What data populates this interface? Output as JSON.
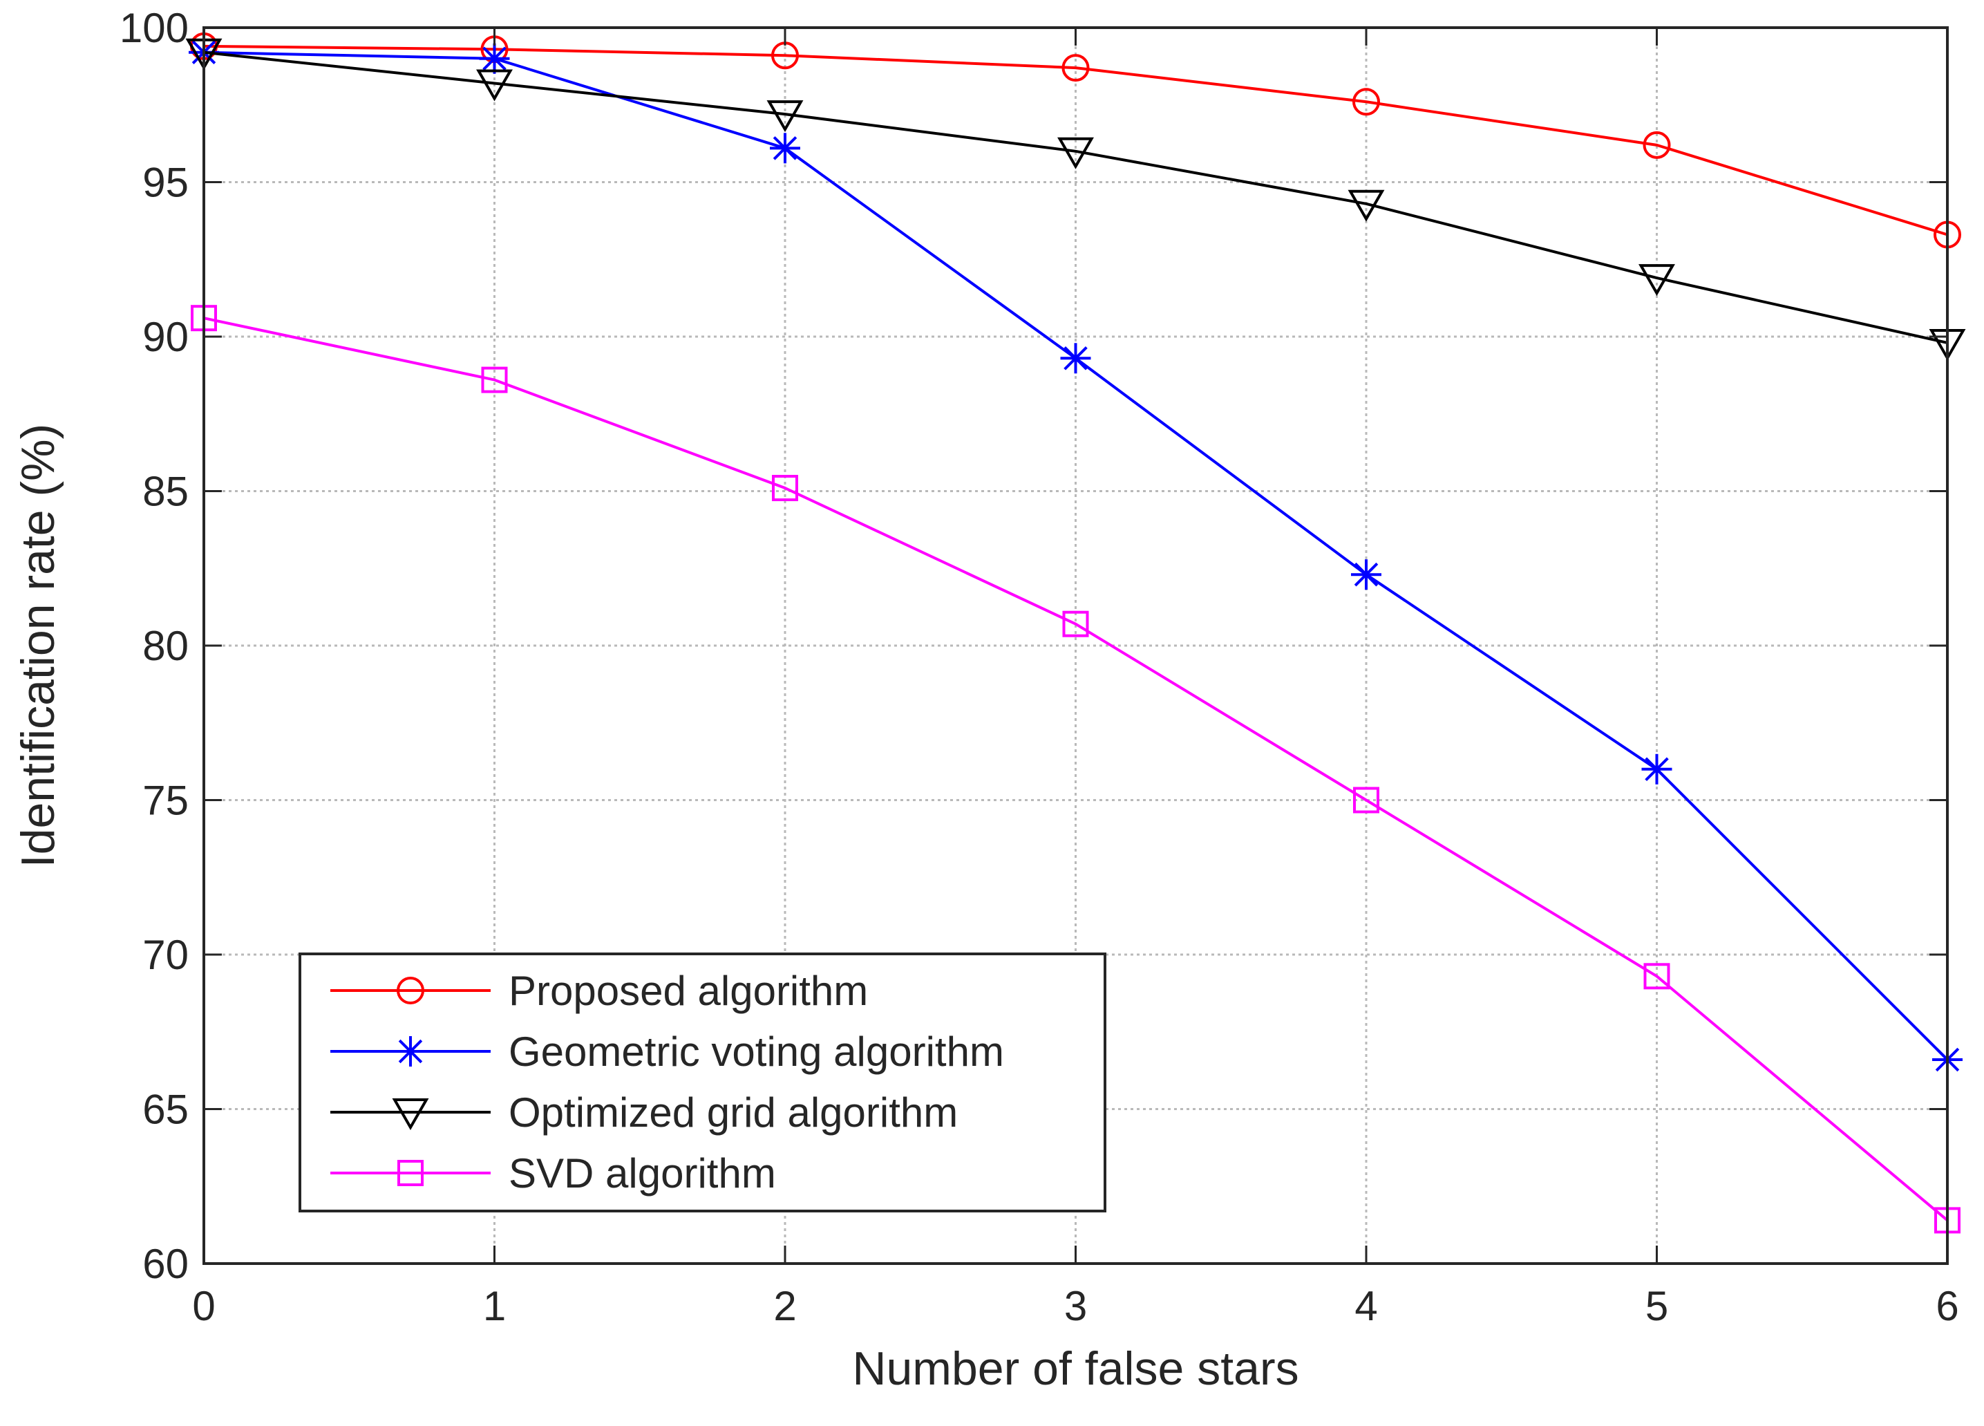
{
  "chart_data": {
    "type": "line",
    "title": "",
    "xlabel": "Number of false stars",
    "ylabel": "Identification rate (%)",
    "xlim": [
      0,
      6
    ],
    "ylim": [
      60,
      100
    ],
    "x": [
      0,
      1,
      2,
      3,
      4,
      5,
      6
    ],
    "xticks": [
      "0",
      "1",
      "2",
      "3",
      "4",
      "5",
      "6"
    ],
    "yticks": [
      "60",
      "65",
      "70",
      "75",
      "80",
      "85",
      "90",
      "95",
      "100"
    ],
    "grid": true,
    "legend_position": "bottom-left",
    "series": [
      {
        "name": "Proposed algorithm",
        "color": "#ff0000",
        "marker": "circle",
        "values": [
          99.4,
          99.3,
          99.1,
          98.7,
          97.6,
          96.2,
          93.3
        ]
      },
      {
        "name": "Geometric voting algorithm",
        "color": "#0000ff",
        "marker": "asterisk",
        "values": [
          99.2,
          99.0,
          96.1,
          89.3,
          82.3,
          76.0,
          66.6
        ]
      },
      {
        "name": "Optimized grid algorithm",
        "color": "#000000",
        "marker": "triangle-down",
        "values": [
          99.2,
          98.2,
          97.2,
          96.0,
          94.3,
          91.9,
          89.8
        ]
      },
      {
        "name": "SVD algorithm",
        "color": "#ff00ff",
        "marker": "square",
        "values": [
          90.6,
          88.6,
          85.1,
          80.7,
          75.0,
          69.3,
          61.4
        ]
      }
    ]
  }
}
